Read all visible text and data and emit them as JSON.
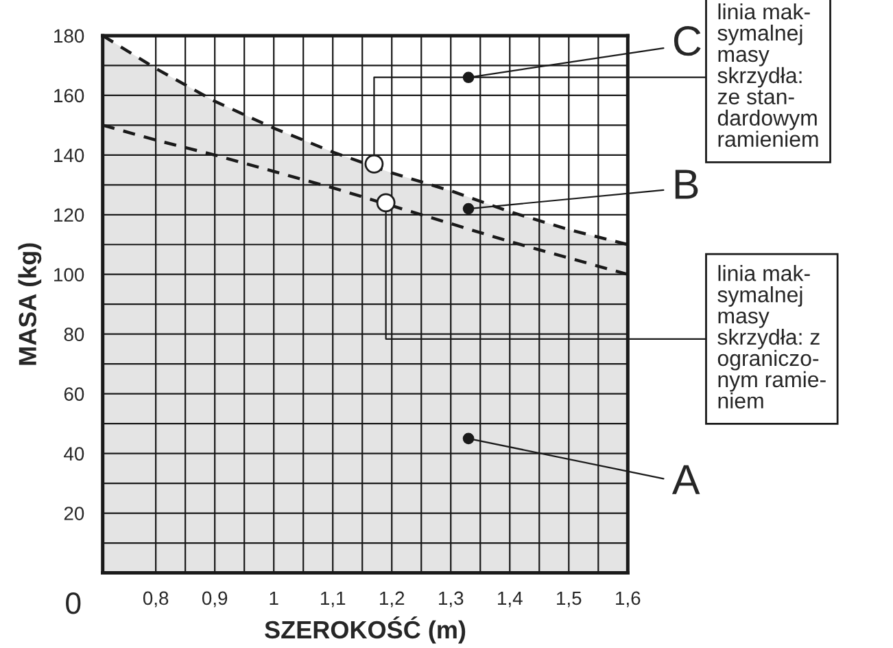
{
  "chart_data": {
    "type": "area",
    "xlabel": "SZEROKOŚĆ (m)",
    "ylabel": "MASA (kg)",
    "x": [
      0.71,
      0.8,
      0.9,
      1.0,
      1.1,
      1.2,
      1.3,
      1.4,
      1.5,
      1.6
    ],
    "series": [
      {
        "color": "#e4e4e4",
        "line_style": "dashed",
        "values": [
          180,
          169,
          158,
          149,
          141,
          134,
          128,
          121,
          115,
          110
        ]
      },
      {
        "type": "line",
        "color": "#1a1a1a",
        "line_style": "dashed",
        "values": [
          150,
          145,
          140,
          134.5,
          129,
          123,
          117,
          111,
          105.5,
          100
        ]
      }
    ],
    "xlim": [
      0.71,
      1.6
    ],
    "ylim": [
      0,
      180
    ],
    "xticks": [
      {
        "value": 0.8,
        "label": "0,8"
      },
      {
        "value": 0.85,
        "label": null
      },
      {
        "value": 0.9,
        "label": "0,9"
      },
      {
        "value": 0.95,
        "label": null
      },
      {
        "value": 1,
        "label": "1"
      },
      {
        "value": 1.05,
        "label": null
      },
      {
        "value": 1.1,
        "label": "1,1"
      },
      {
        "value": 1.15,
        "label": null
      },
      {
        "value": 1.2,
        "label": "1,2"
      },
      {
        "value": 1.25,
        "label": null
      },
      {
        "value": 1.3,
        "label": "1,3"
      },
      {
        "value": 1.35,
        "label": null
      },
      {
        "value": 1.4,
        "label": "1,4"
      },
      {
        "value": 1.45,
        "label": null
      },
      {
        "value": 1.5,
        "label": "1,5"
      },
      {
        "value": 1.55,
        "label": null
      },
      {
        "value": 1.6,
        "label": "1,6"
      }
    ],
    "yticks": [
      {
        "value": 10,
        "label": null
      },
      20,
      {
        "value": 30,
        "label": null
      },
      40,
      {
        "value": 50,
        "label": null
      },
      60,
      {
        "value": 70,
        "label": null
      },
      80,
      {
        "value": 90,
        "label": null
      },
      100,
      {
        "value": 110,
        "label": null
      },
      120,
      {
        "value": 130,
        "label": null
      },
      140,
      {
        "value": 150,
        "label": null
      },
      160,
      {
        "value": 170,
        "label": null
      },
      180
    ],
    "grid": true,
    "annotations": [
      "0",
      {
        "text": "C",
        "x": 1.33,
        "y": 166
      },
      {
        "text": "B",
        "x": 1.33,
        "y": 122
      },
      {
        "text": "A",
        "x": 1.33,
        "y": 45
      },
      {
        "text": "linia mak-\nsymalnej\nmasy\nskrzydła:\nze stan-\ndardowym\nramieniem",
        "x": 1.17,
        "y": 137
      },
      {
        "text": "linia mak-\nsymalnej\nmasy\nskrzydła: z\nograniczo-\nnym ramie-\nniem",
        "x": 1.19,
        "y": 124
      }
    ]
  }
}
